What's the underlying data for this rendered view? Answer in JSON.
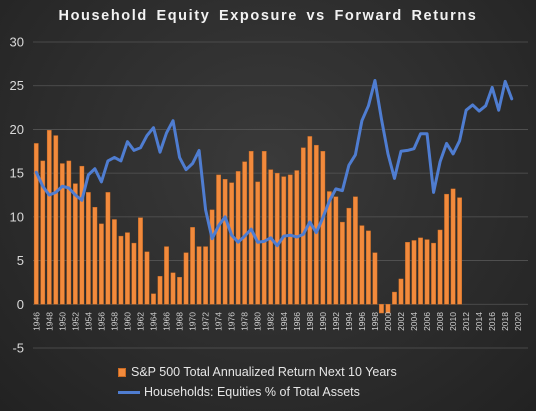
{
  "chart_data": {
    "type": "bar",
    "title": "Household Equity Exposure vs Forward Returns",
    "xlabel": "",
    "ylabel": "",
    "ylim": [
      -5,
      30
    ],
    "yticks": [
      -5,
      0,
      5,
      10,
      15,
      20,
      25,
      30
    ],
    "grid": true,
    "legend_position": "bottom",
    "categories": [
      "1946",
      "1947",
      "1948",
      "1949",
      "1950",
      "1951",
      "1952",
      "1953",
      "1954",
      "1955",
      "1956",
      "1957",
      "1958",
      "1959",
      "1960",
      "1961",
      "1962",
      "1963",
      "1964",
      "1965",
      "1966",
      "1967",
      "1968",
      "1969",
      "1970",
      "1971",
      "1972",
      "1973",
      "1974",
      "1975",
      "1976",
      "1977",
      "1978",
      "1979",
      "1980",
      "1981",
      "1982",
      "1983",
      "1984",
      "1985",
      "1986",
      "1987",
      "1988",
      "1989",
      "1990",
      "1991",
      "1992",
      "1993",
      "1994",
      "1995",
      "1996",
      "1997",
      "1998",
      "1999",
      "2000",
      "2001",
      "2002",
      "2003",
      "2004",
      "2005",
      "2006",
      "2007",
      "2008",
      "2009",
      "2010",
      "2011",
      "2012",
      "2013",
      "2014",
      "2015",
      "2016",
      "2017",
      "2018",
      "2019",
      "2020",
      "2021"
    ],
    "tick_labels": [
      "1946",
      "1948",
      "1950",
      "1952",
      "1954",
      "1956",
      "1958",
      "1960",
      "1962",
      "1964",
      "1966",
      "1968",
      "1970",
      "1972",
      "1974",
      "1976",
      "1978",
      "1980",
      "1982",
      "1984",
      "1986",
      "1988",
      "1990",
      "1992",
      "1994",
      "1996",
      "1998",
      "2000",
      "2002",
      "2004",
      "2006",
      "2008",
      "2010",
      "2012",
      "2014",
      "2016",
      "2018",
      "2020"
    ],
    "series": [
      {
        "name": "S&P 500 Total Annualized Return Next 10 Years",
        "type": "bar",
        "color": "#f28a3c",
        "values": [
          18.4,
          16.4,
          19.9,
          19.3,
          16.1,
          16.4,
          13.8,
          15.8,
          12.8,
          11.1,
          9.2,
          12.8,
          9.7,
          7.8,
          8.2,
          7.0,
          9.9,
          6.0,
          1.2,
          3.2,
          6.6,
          3.6,
          3.1,
          5.9,
          8.8,
          6.6,
          6.6,
          10.8,
          14.8,
          14.3,
          13.9,
          15.2,
          16.3,
          17.5,
          14.0,
          17.5,
          15.4,
          15.0,
          14.6,
          14.8,
          15.3,
          17.9,
          19.2,
          18.2,
          17.5,
          12.9,
          12.3,
          9.4,
          11.0,
          12.3,
          9.0,
          8.4,
          5.9,
          -1.0,
          -1.0,
          1.4,
          2.9,
          7.1,
          7.3,
          7.6,
          7.4,
          7.0,
          8.5,
          12.6,
          13.2,
          12.2,
          null,
          null,
          null,
          null,
          null,
          null,
          null,
          null,
          null,
          null
        ]
      },
      {
        "name": "Households: Equities % of Total Assets",
        "type": "line",
        "color": "#4f7dd1",
        "values": [
          15.1,
          13.5,
          12.5,
          12.8,
          13.5,
          13.3,
          12.5,
          11.9,
          14.8,
          15.5,
          14.0,
          16.4,
          16.8,
          16.4,
          18.6,
          17.6,
          17.9,
          19.3,
          20.2,
          17.4,
          19.6,
          21.0,
          16.8,
          15.4,
          16.1,
          17.6,
          10.8,
          7.5,
          9.0,
          10.0,
          7.9,
          7.1,
          7.8,
          8.6,
          7.1,
          7.2,
          7.6,
          6.7,
          7.8,
          7.9,
          7.7,
          8.0,
          9.4,
          8.2,
          9.9,
          11.8,
          13.2,
          13.0,
          15.9,
          17.1,
          21.0,
          22.7,
          25.6,
          21.2,
          17.2,
          14.4,
          17.5,
          17.6,
          17.8,
          19.5,
          19.5,
          12.8,
          16.3,
          18.4,
          17.2,
          18.7,
          22.2,
          22.8,
          22.1,
          22.7,
          24.8,
          22.2,
          25.5,
          23.5,
          null,
          null
        ]
      }
    ]
  },
  "legend": {
    "bar_label": "S&P 500 Total Annualized Return Next 10 Years",
    "line_label": "Households: Equities % of Total Assets"
  }
}
